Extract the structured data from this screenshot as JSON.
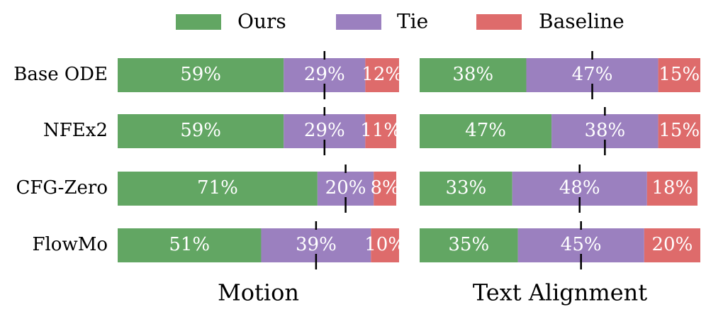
{
  "chart_data": [
    {
      "type": "bar",
      "stacked": true,
      "title": "Motion",
      "categories": [
        "Base ODE",
        "NFEx2",
        "CFG-Zero",
        "FlowMo"
      ],
      "xlim": [
        0,
        100
      ],
      "series": [
        {
          "name": "Ours",
          "color": "#62a663",
          "values": [
            59,
            59,
            71,
            51
          ],
          "value_labels": [
            "59%",
            "59%",
            "71%",
            "51%"
          ]
        },
        {
          "name": "Tie",
          "color": "#9b80bf",
          "values": [
            29,
            29,
            20,
            39
          ],
          "value_labels": [
            "29%",
            "29%",
            "20%",
            "39%"
          ]
        },
        {
          "name": "Baseline",
          "color": "#de6b6b",
          "values": [
            12,
            11,
            8,
            10
          ],
          "value_labels": [
            "12%",
            "11%",
            "8%",
            "10%"
          ]
        }
      ]
    },
    {
      "type": "bar",
      "stacked": true,
      "title": "Text Alignment",
      "xlim": [
        0,
        100
      ],
      "series": [
        {
          "values": [
            38,
            47,
            33,
            35
          ],
          "value_labels": [
            "38%",
            "47%",
            "33%",
            "35%"
          ]
        },
        {
          "values": [
            47,
            38,
            48,
            45
          ],
          "value_labels": [
            "47%",
            "38%",
            "48%",
            "45%"
          ]
        },
        {
          "values": [
            15,
            15,
            18,
            20
          ],
          "value_labels": [
            "15%",
            "15%",
            "18%",
            "20%"
          ]
        }
      ]
    }
  ]
}
